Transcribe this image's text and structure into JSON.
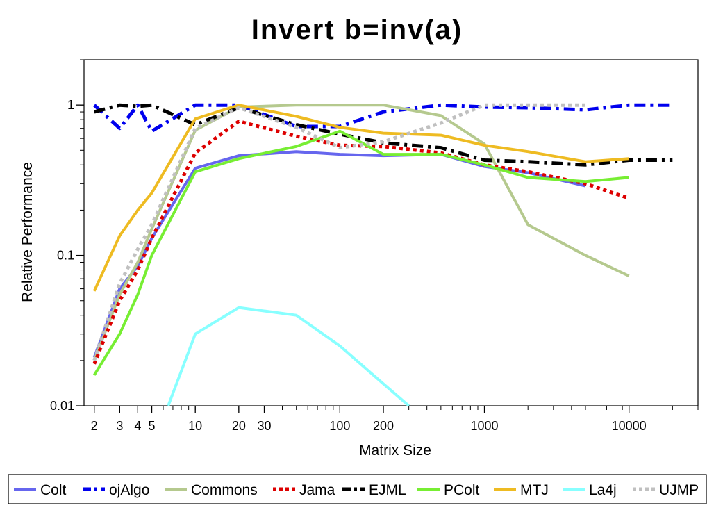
{
  "chart_data": {
    "type": "line",
    "title": "Invert b=inv(a)",
    "xlabel": "Matrix Size",
    "ylabel": "Relative Performance",
    "x_scale": "log",
    "y_scale": "log",
    "xlim": [
      1.7,
      30000
    ],
    "ylim": [
      0.01,
      2
    ],
    "grid": false,
    "legend_position": "bottom",
    "x_ticks": [
      {
        "value": 2,
        "label": "2"
      },
      {
        "value": 3,
        "label": "3"
      },
      {
        "value": 4,
        "label": "4"
      },
      {
        "value": 5,
        "label": "5"
      },
      {
        "value": 10,
        "label": "10"
      },
      {
        "value": 20,
        "label": "20"
      },
      {
        "value": 30,
        "label": "30"
      },
      {
        "value": 100,
        "label": "100"
      },
      {
        "value": 200,
        "label": "200"
      },
      {
        "value": 1000,
        "label": "1000"
      },
      {
        "value": 10000,
        "label": "10000"
      }
    ],
    "y_ticks": [
      {
        "value": 0.01,
        "label": "0.01"
      },
      {
        "value": 0.1,
        "label": "0.1"
      },
      {
        "value": 1,
        "label": "1"
      }
    ],
    "series": [
      {
        "name": "Colt",
        "color": "#6666ee",
        "dash": "solid",
        "x": [
          2,
          3,
          4,
          5,
          10,
          20,
          50,
          100,
          200,
          500,
          1000,
          2000,
          5000
        ],
        "y": [
          0.021,
          0.06,
          0.085,
          0.13,
          0.38,
          0.46,
          0.49,
          0.47,
          0.46,
          0.47,
          0.39,
          0.355,
          0.29
        ]
      },
      {
        "name": "ojAlgo",
        "color": "#0000ee",
        "dash": "dashdot",
        "x": [
          2,
          3,
          4,
          5,
          10,
          20,
          50,
          100,
          200,
          500,
          1000,
          2000,
          5000,
          10000,
          20000
        ],
        "y": [
          1.0,
          0.7,
          1.0,
          0.67,
          1.0,
          1.0,
          0.72,
          0.72,
          0.9,
          1.0,
          0.97,
          0.96,
          0.93,
          1.0,
          1.0
        ]
      },
      {
        "name": "Commons",
        "color": "#b5c98e",
        "dash": "solid",
        "x": [
          2,
          3,
          4,
          5,
          10,
          20,
          50,
          100,
          200,
          500,
          1000,
          2000,
          5000,
          10000
        ],
        "y": [
          0.02,
          0.055,
          0.09,
          0.15,
          0.68,
          0.97,
          1.0,
          1.0,
          1.0,
          0.85,
          0.55,
          0.16,
          0.1,
          0.073
        ]
      },
      {
        "name": "Jama",
        "color": "#dd0000",
        "dash": "dotted",
        "x": [
          2,
          3,
          4,
          5,
          10,
          20,
          50,
          100,
          200,
          500,
          1000,
          2000,
          5000,
          10000
        ],
        "y": [
          0.019,
          0.05,
          0.08,
          0.13,
          0.48,
          0.78,
          0.62,
          0.54,
          0.53,
          0.48,
          0.4,
          0.36,
          0.3,
          0.24
        ]
      },
      {
        "name": "EJML",
        "color": "#000000",
        "dash": "dashdot",
        "x": [
          2,
          3,
          4,
          5,
          10,
          20,
          50,
          100,
          200,
          500,
          1000,
          2000,
          5000,
          10000,
          20000
        ],
        "y": [
          0.9,
          1.0,
          0.98,
          1.0,
          0.74,
          0.96,
          0.74,
          0.64,
          0.56,
          0.52,
          0.43,
          0.42,
          0.4,
          0.43,
          0.43
        ]
      },
      {
        "name": "PColt",
        "color": "#77ee33",
        "dash": "solid",
        "x": [
          2,
          3,
          4,
          5,
          10,
          20,
          50,
          100,
          200,
          500,
          1000,
          2000,
          5000,
          10000
        ],
        "y": [
          0.016,
          0.03,
          0.055,
          0.1,
          0.36,
          0.44,
          0.53,
          0.67,
          0.47,
          0.47,
          0.4,
          0.33,
          0.31,
          0.33
        ]
      },
      {
        "name": "MTJ",
        "color": "#eebb22",
        "dash": "solid",
        "x": [
          2,
          3,
          4,
          5,
          10,
          20,
          50,
          100,
          200,
          500,
          1000,
          2000,
          5000,
          10000
        ],
        "y": [
          0.058,
          0.135,
          0.2,
          0.26,
          0.81,
          1.0,
          0.84,
          0.71,
          0.65,
          0.63,
          0.54,
          0.49,
          0.42,
          0.44
        ]
      },
      {
        "name": "La4j",
        "color": "#88ffff",
        "dash": "solid",
        "x": [
          6.5,
          10,
          20,
          50,
          100,
          200,
          300
        ],
        "y": [
          0.01,
          0.03,
          0.045,
          0.04,
          0.025,
          0.014,
          0.01
        ]
      },
      {
        "name": "UJMP",
        "color": "#c0c0c0",
        "dash": "dotted",
        "x": [
          2,
          3,
          4,
          5,
          10,
          20,
          50,
          100,
          200,
          500,
          1000,
          2000,
          5000
        ],
        "y": [
          0.02,
          0.065,
          0.11,
          0.16,
          0.7,
          0.96,
          0.71,
          0.52,
          0.57,
          0.76,
          1.0,
          1.0,
          1.0
        ]
      }
    ]
  }
}
